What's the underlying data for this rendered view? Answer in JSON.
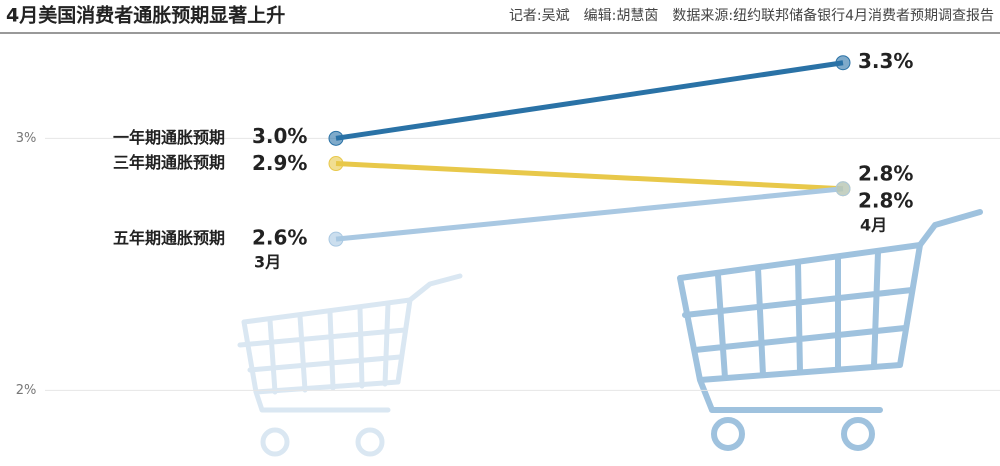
{
  "chart_data": {
    "type": "line",
    "title": "4月美国消费者通胀预期显著上升",
    "subtitle": "记者:吴斌　编辑:胡慧茵　数据来源:纽约联邦储备银行4月消费者预期调查报告",
    "categories": [
      "3月",
      "4月"
    ],
    "series": [
      {
        "name": "一年期通胀预期",
        "color": "#2a72a6",
        "values": [
          3.0,
          3.3
        ],
        "value_labels": [
          "3.0%",
          "3.3%"
        ]
      },
      {
        "name": "三年期通胀预期",
        "color": "#e8c84a",
        "values": [
          2.9,
          2.8
        ],
        "value_labels": [
          "2.9%",
          "2.8%"
        ]
      },
      {
        "name": "五年期通胀预期",
        "color": "#a9c8e2",
        "values": [
          2.6,
          2.8
        ],
        "value_labels": [
          "2.6%",
          "2.8%"
        ]
      }
    ],
    "ylim": [
      1.7,
      3.41
    ],
    "yticks": [
      {
        "value": 2,
        "label": "2%"
      },
      {
        "value": 3,
        "label": "3%"
      }
    ],
    "grid": true
  }
}
